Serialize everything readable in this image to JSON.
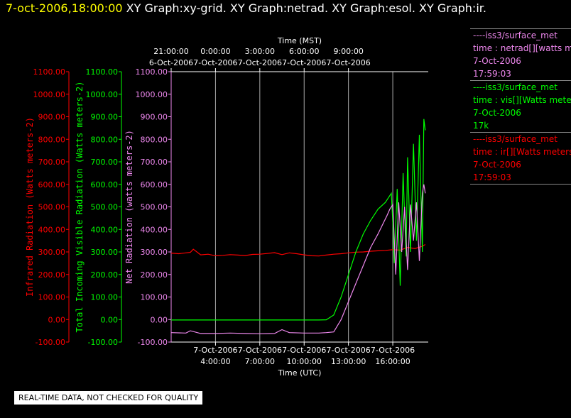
{
  "header": {
    "timestamp": "7-oct-2006,18:00:00",
    "graphs": [
      " XY Graph:xy-grid.",
      " XY Graph:netrad.",
      " XY Graph:esol.",
      " XY Graph:ir."
    ]
  },
  "colors": {
    "ir": "#ff0000",
    "vis": "#00ff00",
    "net": "#ee88ee",
    "bg": "#000000",
    "grid": "#aaaaaa",
    "axis": "#ffffff"
  },
  "legend": [
    {
      "lines": [
        "----iss3/surface_met",
        "time : netrad[][watts met",
        "7-Oct-2006",
        "17:59:03"
      ],
      "color": "#ee88ee"
    },
    {
      "lines": [
        "----iss3/surface_met",
        "time : vis[][Watts meter",
        "7-Oct-2006",
        "17k"
      ],
      "color": "#00ff00"
    },
    {
      "lines": [
        "----iss3/surface_met",
        "time : ir[][Watts meters",
        "7-Oct-2006",
        "17:59:03"
      ],
      "color": "#ff0000"
    }
  ],
  "note": "REAL-TIME DATA, NOT CHECKED FOR QUALITY",
  "chart_data": {
    "type": "line",
    "x_top_title": "Time (MST)",
    "x_bottom_title": "Time (UTC)",
    "x_top_ticks": [
      {
        "t": 1,
        "time": "21:00:00",
        "date": "6-Oct-2006"
      },
      {
        "t": 4,
        "time": "0:00:00",
        "date": "7-Oct-2006"
      },
      {
        "t": 7,
        "time": "3:00:00",
        "date": "7-Oct-2006"
      },
      {
        "t": 10,
        "time": "6:00:00",
        "date": "7-Oct-2006"
      },
      {
        "t": 13,
        "time": "9:00:00",
        "date": "7-Oct-2006"
      }
    ],
    "x_bottom_ticks": [
      {
        "t": 4,
        "date": "7-Oct-2006",
        "time": "4:00:00"
      },
      {
        "t": 7,
        "date": "7-Oct-2006",
        "time": "7:00:00"
      },
      {
        "t": 10,
        "date": "7-Oct-2006",
        "time": "10:00:00"
      },
      {
        "t": 13,
        "date": "7-Oct-2006",
        "time": "13:00:00"
      },
      {
        "t": 16,
        "date": "7-Oct-2006",
        "time": "16:00:00"
      }
    ],
    "xlim": [
      1,
      18.4
    ],
    "ylim": [
      -100,
      1100
    ],
    "y_ticks": [
      "1100.00",
      "1000.00",
      "900.00",
      "800.00",
      "700.00",
      "600.00",
      "500.00",
      "400.00",
      "300.00",
      "200.00",
      "100.00",
      "0.00",
      "-100.00"
    ],
    "y_tick_values": [
      1100,
      1000,
      900,
      800,
      700,
      600,
      500,
      400,
      300,
      200,
      100,
      0,
      -100
    ],
    "axes": [
      {
        "label": "Infrared Radiation (Watts meters-2)",
        "color": "#ff0000"
      },
      {
        "label": "Total Incoming Visible Radiation (Watts meters-2)",
        "color": "#00ff00"
      },
      {
        "label": "Net Radiation (watts meters-2)",
        "color": "#ee88ee"
      }
    ],
    "grid": true,
    "series": [
      {
        "name": "ir",
        "color": "#ff0000",
        "x": [
          1,
          1.5,
          2,
          2.3,
          2.5,
          3,
          3.5,
          4,
          4.5,
          5,
          5.5,
          6,
          6.5,
          7,
          7.5,
          8,
          8.5,
          9,
          9.5,
          10,
          10.5,
          11,
          11.5,
          12,
          12.5,
          13,
          13.5,
          14,
          14.5,
          15,
          15.5,
          16,
          16.5,
          17,
          17.5,
          18,
          18.2
        ],
        "y": [
          295,
          292,
          296,
          298,
          312,
          287,
          290,
          283,
          285,
          288,
          286,
          284,
          289,
          290,
          293,
          297,
          288,
          296,
          292,
          287,
          283,
          282,
          286,
          290,
          292,
          296,
          299,
          300,
          303,
          305,
          307,
          310,
          308,
          320,
          315,
          325,
          333
        ]
      },
      {
        "name": "vis",
        "color": "#00ff00",
        "x": [
          1,
          2,
          3,
          4,
          5,
          6,
          7,
          8,
          9,
          10,
          11,
          11.5,
          12,
          12.5,
          13,
          13.5,
          14,
          14.5,
          15,
          15.5,
          15.7,
          15.9,
          16,
          16.1,
          16.3,
          16.5,
          16.7,
          16.9,
          17,
          17.2,
          17.4,
          17.6,
          17.8,
          18,
          18.1,
          18.2
        ],
        "y": [
          -2,
          -2,
          -2,
          -2,
          -2,
          -2,
          -2,
          -2,
          -2,
          -2,
          -2,
          -1,
          20,
          100,
          200,
          300,
          380,
          440,
          490,
          520,
          540,
          560,
          430,
          250,
          580,
          150,
          650,
          280,
          720,
          300,
          780,
          350,
          820,
          300,
          890,
          840
        ]
      },
      {
        "name": "net",
        "color": "#ee88ee",
        "x": [
          1,
          2,
          2.3,
          3,
          4,
          5,
          6,
          7,
          8,
          8.5,
          9,
          10,
          11,
          11.5,
          12,
          12.5,
          13,
          13.5,
          14,
          14.5,
          15,
          15.3,
          15.6,
          15.8,
          16,
          16.2,
          16.4,
          16.6,
          16.8,
          17,
          17.2,
          17.4,
          17.6,
          17.8,
          18,
          18.1,
          18.2
        ],
        "y": [
          -58,
          -60,
          -50,
          -62,
          -62,
          -60,
          -62,
          -63,
          -62,
          -45,
          -58,
          -60,
          -60,
          -58,
          -55,
          0,
          80,
          160,
          240,
          320,
          380,
          420,
          460,
          490,
          510,
          200,
          520,
          300,
          500,
          220,
          510,
          350,
          520,
          260,
          560,
          600,
          560
        ]
      }
    ]
  }
}
